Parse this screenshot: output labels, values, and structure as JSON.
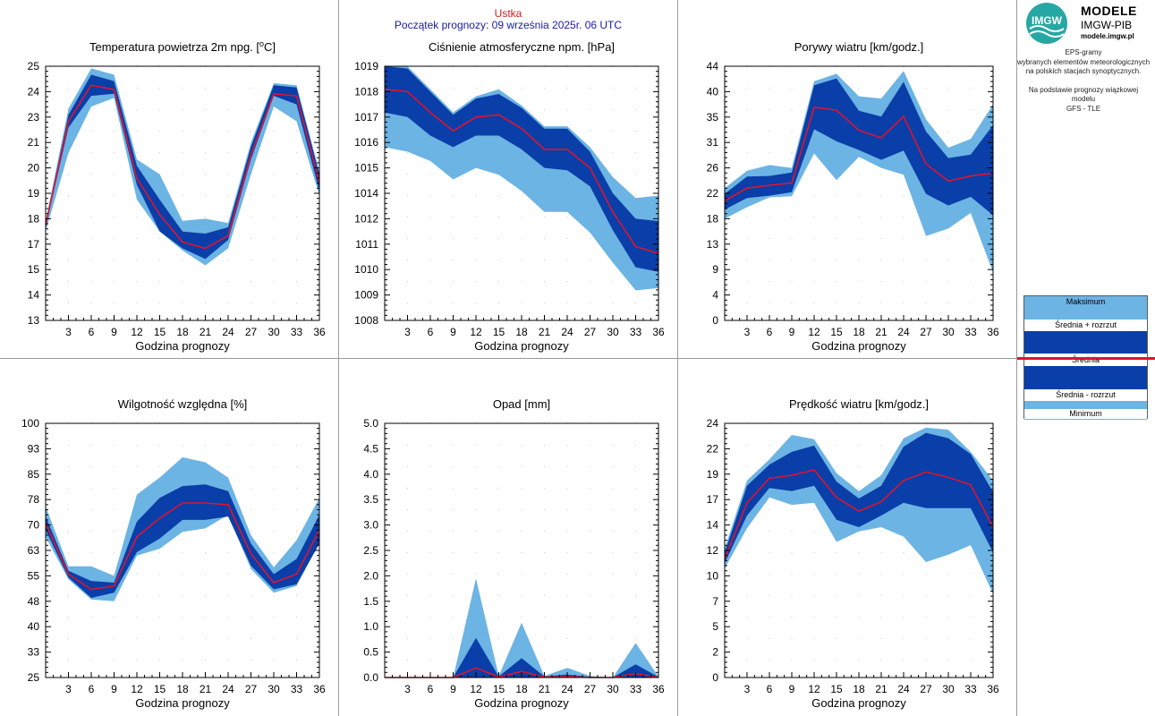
{
  "header": {
    "station": "Ustka",
    "forecast_start": "Początek prognozy: 09 września 2025r. 06 UTC"
  },
  "logo": {
    "title": "MODELE",
    "subtitle": "IMGW-PIB",
    "url": "modele.imgw.pl",
    "mark_text": "IMGW"
  },
  "description": {
    "line1": "EPS-gramy",
    "line2": "wybranych elementów meteorologicznych",
    "line3": "na polskich stacjach  synoptycznych.",
    "line4": "Na podstawie prognozy wiązkowej modelu",
    "line5": "GFS - TLE"
  },
  "legend": {
    "max": "Maksimum",
    "mean_plus": "Średnia + rozrzut",
    "mean": "Średnia",
    "mean_minus": "Średnia - rozrzut",
    "min": "Minimum"
  },
  "colors": {
    "outer_band": "#6cb4e4",
    "inner_band": "#0a3ea8",
    "mean_line": "#e0142e",
    "frame": "#000000",
    "divider": "#9a9a9a"
  },
  "chart_data": [
    {
      "type": "area",
      "title": "Temperatura powietrza 2m npg. [",
      "title_sup": "o",
      "title_end": "C]",
      "xlabel": "Godzina prognozy",
      "x": [
        0,
        3,
        6,
        9,
        12,
        15,
        18,
        21,
        24,
        27,
        30,
        33,
        36
      ],
      "xticks": [
        3,
        6,
        9,
        12,
        15,
        18,
        21,
        24,
        27,
        30,
        33,
        36
      ],
      "ylim": [
        13,
        25
      ],
      "yticks": [
        "13",
        "14",
        "15",
        "17",
        "18",
        "19",
        "20",
        "21",
        "23",
        "24",
        "25"
      ],
      "series": {
        "max": [
          17.7,
          23.0,
          24.9,
          24.6,
          20.6,
          19.9,
          17.7,
          17.8,
          17.6,
          21.4,
          24.2,
          24.1,
          20.0
        ],
        "mean_plus": [
          17.6,
          22.7,
          24.6,
          24.3,
          20.3,
          18.7,
          17.2,
          17.1,
          17.4,
          21.2,
          24.1,
          24.0,
          19.9
        ],
        "mean": [
          17.5,
          22.4,
          24.1,
          23.9,
          19.7,
          18.0,
          16.7,
          16.4,
          17.0,
          20.8,
          23.7,
          23.6,
          19.5
        ],
        "mean_minus": [
          17.4,
          22.1,
          23.6,
          23.7,
          19.4,
          17.2,
          16.4,
          15.9,
          16.8,
          20.6,
          23.6,
          23.2,
          19.1
        ],
        "min": [
          17.2,
          20.9,
          23.1,
          23.5,
          18.7,
          17.2,
          16.3,
          15.6,
          16.4,
          19.9,
          23.1,
          22.4,
          18.9
        ]
      }
    },
    {
      "type": "area",
      "title": "Ciśnienie atmosferyczne npm. [hPa]",
      "xlabel": "Godzina prognozy",
      "x": [
        0,
        3,
        6,
        9,
        12,
        15,
        18,
        21,
        24,
        27,
        30,
        33,
        36
      ],
      "xticks": [
        3,
        6,
        9,
        12,
        15,
        18,
        21,
        24,
        27,
        30,
        33,
        36
      ],
      "ylim": [
        1008,
        1019
      ],
      "yticks": [
        "1008",
        "1009",
        "1010",
        "1011",
        "1012",
        "1014",
        "1015",
        "1016",
        "1017",
        "1018",
        "1019"
      ],
      "series": {
        "max": [
          1019.0,
          1019.0,
          1018.0,
          1017.0,
          1017.7,
          1018.0,
          1017.3,
          1016.4,
          1016.4,
          1015.5,
          1014.2,
          1013.3,
          1013.4
        ],
        "mean_plus": [
          1019.0,
          1018.9,
          1017.9,
          1016.9,
          1017.6,
          1017.8,
          1017.2,
          1016.3,
          1016.3,
          1015.3,
          1013.5,
          1012.4,
          1012.3
        ],
        "mean": [
          1018.0,
          1017.9,
          1017.0,
          1016.2,
          1016.8,
          1016.9,
          1016.3,
          1015.4,
          1015.4,
          1014.6,
          1012.7,
          1011.2,
          1010.9
        ],
        "mean_minus": [
          1017.0,
          1016.8,
          1016.0,
          1015.5,
          1016.0,
          1016.0,
          1015.4,
          1014.6,
          1014.5,
          1013.8,
          1011.9,
          1010.3,
          1010.1
        ],
        "min": [
          1015.5,
          1015.3,
          1014.9,
          1014.1,
          1014.6,
          1014.3,
          1013.6,
          1012.7,
          1012.7,
          1011.8,
          1010.5,
          1009.3,
          1009.4
        ]
      }
    },
    {
      "type": "area",
      "title": "Porywy wiatru [km/godz.]",
      "xlabel": "Godzina prognozy",
      "x": [
        0,
        3,
        6,
        9,
        12,
        15,
        18,
        21,
        24,
        27,
        30,
        33,
        36
      ],
      "xticks": [
        3,
        6,
        9,
        12,
        15,
        18,
        21,
        24,
        27,
        30,
        33,
        36
      ],
      "ylim": [
        0,
        44
      ],
      "yticks": [
        "0",
        "4",
        "9",
        "13",
        "18",
        "22",
        "26",
        "31",
        "35",
        "40",
        "44"
      ],
      "series": {
        "max": [
          22.9,
          25.9,
          26.9,
          26.4,
          41.4,
          42.7,
          38.8,
          38.4,
          43.2,
          34.8,
          29.9,
          31.4,
          37.4
        ],
        "mean_plus": [
          21.9,
          24.9,
          25.0,
          25.6,
          40.7,
          41.9,
          36.3,
          35.3,
          41.3,
          32.7,
          28.1,
          28.7,
          33.8
        ],
        "mean": [
          20.7,
          22.9,
          23.4,
          23.8,
          36.9,
          36.4,
          32.9,
          31.6,
          35.3,
          27.1,
          24.1,
          25.0,
          25.5
        ],
        "mean_minus": [
          19.2,
          21.2,
          21.6,
          22.2,
          33.1,
          31.0,
          29.5,
          27.8,
          29.4,
          21.9,
          19.9,
          21.4,
          18.2
        ],
        "min": [
          17.6,
          19.6,
          21.3,
          21.5,
          28.9,
          24.3,
          28.3,
          26.4,
          25.2,
          14.6,
          15.9,
          18.6,
          8.3
        ]
      }
    },
    {
      "type": "area",
      "title": "Wilgotność względna [%]",
      "xlabel": "Godzina prognozy",
      "x": [
        0,
        3,
        6,
        9,
        12,
        15,
        18,
        21,
        24,
        27,
        30,
        33,
        36
      ],
      "xticks": [
        3,
        6,
        9,
        12,
        15,
        18,
        21,
        24,
        27,
        30,
        33,
        36
      ],
      "ylim": [
        25,
        100
      ],
      "yticks": [
        "25",
        "33",
        "40",
        "48",
        "55",
        "63",
        "70",
        "78",
        "85",
        "93",
        "100"
      ],
      "series": {
        "max": [
          75.5,
          57.8,
          57.8,
          55.0,
          79.0,
          84.0,
          90.0,
          88.5,
          84.0,
          67.0,
          57.5,
          65.5,
          78.0
        ],
        "mean_plus": [
          72.5,
          56.5,
          53.5,
          53.0,
          71.0,
          78.0,
          81.5,
          82.0,
          80.0,
          64.5,
          55.5,
          60.0,
          73.0
        ],
        "mean": [
          70.5,
          55.5,
          51.0,
          52.0,
          66.5,
          72.0,
          76.5,
          76.5,
          76.0,
          61.5,
          53.0,
          55.5,
          68.5
        ],
        "mean_minus": [
          68.5,
          54.5,
          48.5,
          50.0,
          62.0,
          66.0,
          71.5,
          71.5,
          72.5,
          58.0,
          51.0,
          52.5,
          64.5
        ],
        "min": [
          66.5,
          54.0,
          48.0,
          47.5,
          61.0,
          63.0,
          68.0,
          69.0,
          73.0,
          57.0,
          50.0,
          52.0,
          65.0
        ]
      }
    },
    {
      "type": "area",
      "title": "Opad [mm]",
      "xlabel": "Godzina prognozy",
      "x": [
        0,
        3,
        6,
        9,
        12,
        15,
        18,
        21,
        24,
        27,
        30,
        33,
        36
      ],
      "xticks": [
        3,
        6,
        9,
        12,
        15,
        18,
        21,
        24,
        27,
        30,
        33,
        36
      ],
      "ylim": [
        0,
        5
      ],
      "yticks": [
        "0.0",
        "0.5",
        "1.0",
        "1.5",
        "2.0",
        "2.5",
        "3.0",
        "3.5",
        "4.0",
        "4.5",
        "5.0"
      ],
      "series": {
        "max": [
          0,
          0,
          0,
          0,
          1.95,
          0.03,
          1.08,
          0.03,
          0.19,
          0.03,
          0,
          0.68,
          0.02
        ],
        "mean_plus": [
          0,
          0,
          0,
          0,
          0.78,
          0.02,
          0.38,
          0.02,
          0.06,
          0.01,
          0,
          0.26,
          0.01
        ],
        "mean": [
          0,
          0,
          0,
          0,
          0.19,
          0.01,
          0.12,
          0.01,
          0.02,
          0,
          0,
          0.08,
          0
        ],
        "mean_minus": [
          0,
          0,
          0,
          0,
          0,
          0,
          0,
          0,
          0,
          0,
          0,
          0,
          0
        ],
        "min": [
          0,
          0,
          0,
          0,
          0,
          0,
          0,
          0,
          0,
          0,
          0,
          0,
          0
        ]
      }
    },
    {
      "type": "area",
      "title": "Prędkość wiatru [km/godz.]",
      "xlabel": "Godzina prognozy",
      "x": [
        0,
        3,
        6,
        9,
        12,
        15,
        18,
        21,
        24,
        27,
        30,
        33,
        36
      ],
      "xticks": [
        3,
        6,
        9,
        12,
        15,
        18,
        21,
        24,
        27,
        30,
        33,
        36
      ],
      "ylim": [
        0,
        24
      ],
      "yticks": [
        "0",
        "2",
        "5",
        "7",
        "10",
        "12",
        "14",
        "17",
        "19",
        "22",
        "24"
      ],
      "series": {
        "max": [
          12.2,
          18.6,
          20.6,
          22.9,
          22.5,
          19.3,
          17.6,
          19.1,
          22.6,
          23.6,
          23.4,
          21.3,
          18.6
        ],
        "mean_plus": [
          11.8,
          18.1,
          20.1,
          21.3,
          21.9,
          18.5,
          16.9,
          18.1,
          21.8,
          23.1,
          22.6,
          21.1,
          17.5
        ],
        "mean": [
          11.2,
          16.5,
          18.8,
          19.1,
          19.6,
          17.0,
          15.7,
          16.6,
          18.6,
          19.4,
          18.9,
          18.2,
          14.2
        ],
        "mean_minus": [
          10.8,
          15.3,
          17.9,
          17.6,
          18.1,
          14.9,
          14.2,
          15.3,
          16.5,
          16.0,
          16.0,
          16.0,
          11.8
        ],
        "min": [
          10.3,
          14.1,
          17.0,
          16.3,
          16.5,
          12.8,
          13.8,
          14.2,
          13.3,
          10.9,
          11.6,
          12.5,
          7.9
        ]
      }
    }
  ]
}
